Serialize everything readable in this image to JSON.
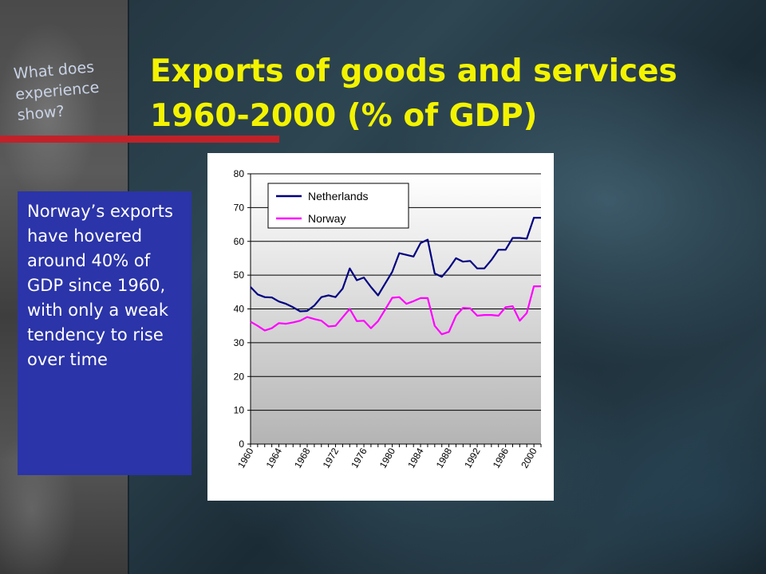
{
  "slide": {
    "kicker": "What does experience show?",
    "title_line1": "Exports of goods and services",
    "title_line2": "1960-2000 (% of GDP)",
    "note": "Norway’s exports have hovered around 40% of GDP since 1960, with only a weak tendency to rise over time",
    "accent_color": "#c0222a",
    "title_color": "#f3f300",
    "note_background": "#2b34a8"
  },
  "chart_data": {
    "type": "line",
    "title": "",
    "xlabel": "",
    "ylabel": "",
    "ylim": [
      0,
      80
    ],
    "yticks": [
      "0",
      "10",
      "20",
      "30",
      "40",
      "50",
      "60",
      "70",
      "80"
    ],
    "xticks": [
      "1960",
      "1964",
      "1968",
      "1972",
      "1976",
      "1980",
      "1984",
      "1988",
      "1992",
      "1996",
      "2000"
    ],
    "grid": true,
    "legend_position": "top-left",
    "x": [
      1960,
      1961,
      1962,
      1963,
      1964,
      1965,
      1966,
      1967,
      1968,
      1969,
      1970,
      1971,
      1972,
      1973,
      1974,
      1975,
      1976,
      1977,
      1978,
      1979,
      1980,
      1981,
      1982,
      1983,
      1984,
      1985,
      1986,
      1987,
      1988,
      1989,
      1990,
      1991,
      1992,
      1993,
      1994,
      1995,
      1996,
      1997,
      1998,
      1999,
      2000,
      2001
    ],
    "series": [
      {
        "name": "Netherlands",
        "color": "#000080",
        "values": [
          46.5,
          44.3,
          43.5,
          43.4,
          42.2,
          41.5,
          40.5,
          39.3,
          39.4,
          41.0,
          43.5,
          44.0,
          43.5,
          46.0,
          52.0,
          48.5,
          49.3,
          46.5,
          44.0,
          47.5,
          51.0,
          56.5,
          56.0,
          55.5,
          59.5,
          60.5,
          50.5,
          49.5,
          52.0,
          55.0,
          54.0,
          54.2,
          52.0,
          52.0,
          54.5,
          57.5,
          57.5,
          61.0,
          61.0,
          60.8,
          67.0,
          67.0
        ],
        "values_count_note": ""
      },
      {
        "name": "Norway",
        "color": "#ff00ff",
        "values": [
          36.2,
          35.0,
          33.6,
          34.3,
          35.8,
          35.6,
          36.0,
          36.5,
          37.6,
          37.0,
          36.5,
          34.8,
          35.0,
          37.5,
          40.0,
          36.4,
          36.5,
          34.3,
          36.4,
          39.8,
          43.3,
          43.5,
          41.5,
          42.3,
          43.2,
          43.2,
          35.0,
          32.5,
          33.2,
          38.0,
          40.3,
          40.2,
          38.0,
          38.2,
          38.2,
          38.0,
          40.5,
          40.8,
          36.5,
          38.8,
          46.7,
          46.7
        ]
      }
    ]
  }
}
